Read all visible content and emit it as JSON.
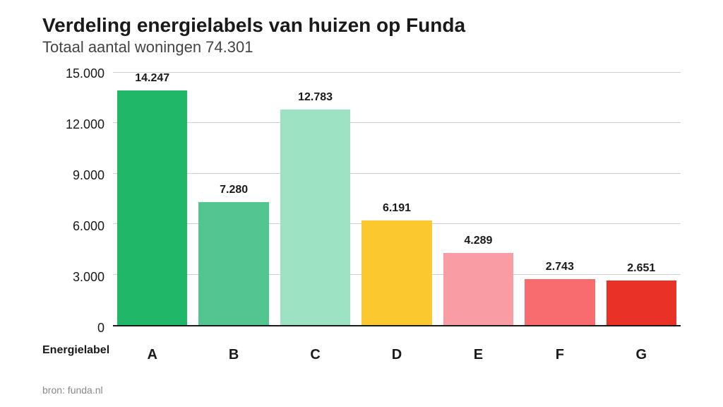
{
  "title": "Verdeling energielabels van huizen op Funda",
  "subtitle": "Totaal aantal woningen 74.301",
  "source": "bron: funda.nl",
  "chart": {
    "type": "bar",
    "x_axis_title": "Energielabel",
    "y_max": 15000,
    "y_ticks": [
      "15.000",
      "12.000",
      "9.000",
      "6.000",
      "3.000",
      "0"
    ],
    "grid_color": "#d0d0d0",
    "axis_color": "#1a1a1a",
    "background_color": "#ffffff",
    "bars": [
      {
        "label": "A",
        "value": 14247,
        "display": "14.247",
        "color": "#21b768"
      },
      {
        "label": "B",
        "value": 7280,
        "display": "7.280",
        "color": "#52c591"
      },
      {
        "label": "C",
        "value": 12783,
        "display": "12.783",
        "color": "#9de2c3"
      },
      {
        "label": "D",
        "value": 6191,
        "display": "6.191",
        "color": "#fcc830"
      },
      {
        "label": "E",
        "value": 4289,
        "display": "4.289",
        "color": "#fa9ca3"
      },
      {
        "label": "F",
        "value": 2743,
        "display": "2.743",
        "color": "#f86b6f"
      },
      {
        "label": "G",
        "value": 2651,
        "display": "2.651",
        "color": "#e93128"
      }
    ]
  }
}
